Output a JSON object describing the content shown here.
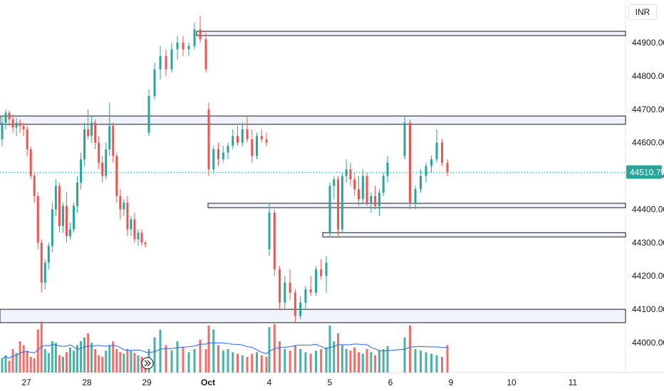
{
  "currency": "INR",
  "colors": {
    "up": "#26a69a",
    "down": "#ef5350",
    "volume_ma": "#2962ff",
    "zone_fill": "#f0f3fa",
    "zone_border": "#131722",
    "last_price_tag": "#26a69a"
  },
  "chart_data": {
    "type": "candlestick",
    "price_ylim": [
      43950,
      45000
    ],
    "price_ticks": [
      "44900.00",
      "44800.00",
      "44700.00",
      "44600.00",
      "44500.00",
      "44400.00",
      "44300.00",
      "44200.00",
      "44100.00",
      "44000.00"
    ],
    "last_price": "44510.75",
    "date_ticks": [
      "27",
      "28",
      "29",
      "Oct",
      "4",
      "5",
      "6",
      "9",
      "10",
      "11"
    ],
    "zones": [
      {
        "low": 44924,
        "high": 44934
      },
      {
        "low": 44655,
        "high": 44680
      },
      {
        "low": 44405,
        "high": 44418
      },
      {
        "low": 44320,
        "high": 44330
      },
      {
        "low": 44060,
        "high": 44100
      }
    ],
    "candles": [
      [
        44610,
        44680,
        44590,
        44660
      ],
      [
        44660,
        44700,
        44640,
        44690
      ],
      [
        44690,
        44695,
        44650,
        44670
      ],
      [
        44670,
        44685,
        44630,
        44645
      ],
      [
        44645,
        44675,
        44620,
        44660
      ],
      [
        44660,
        44670,
        44630,
        44650
      ],
      [
        44650,
        44660,
        44620,
        44640
      ],
      [
        44640,
        44650,
        44560,
        44580
      ],
      [
        44580,
        44590,
        44490,
        44500
      ],
      [
        44500,
        44510,
        44420,
        44440
      ],
      [
        44440,
        44450,
        44280,
        44300
      ],
      [
        44300,
        44310,
        44150,
        44180
      ],
      [
        44180,
        44250,
        44160,
        44240
      ],
      [
        44240,
        44300,
        44220,
        44290
      ],
      [
        44290,
        44420,
        44270,
        44400
      ],
      [
        44400,
        44490,
        44380,
        44470
      ],
      [
        44470,
        44480,
        44330,
        44350
      ],
      [
        44350,
        44420,
        44330,
        44410
      ],
      [
        44410,
        44450,
        44300,
        44320
      ],
      [
        44320,
        44360,
        44310,
        44340
      ],
      [
        44340,
        44420,
        44330,
        44410
      ],
      [
        44410,
        44500,
        44390,
        44480
      ],
      [
        44480,
        44570,
        44460,
        44550
      ],
      [
        44550,
        44660,
        44530,
        44640
      ],
      [
        44640,
        44700,
        44610,
        44620
      ],
      [
        44620,
        44680,
        44600,
        44660
      ],
      [
        44660,
        44670,
        44580,
        44600
      ],
      [
        44600,
        44620,
        44520,
        44540
      ],
      [
        44540,
        44560,
        44480,
        44500
      ],
      [
        44500,
        44600,
        44490,
        44580
      ],
      [
        44580,
        44720,
        44560,
        44650
      ],
      [
        44650,
        44660,
        44540,
        44560
      ],
      [
        44560,
        44570,
        44420,
        44440
      ],
      [
        44440,
        44460,
        44370,
        44400
      ],
      [
        44400,
        44430,
        44380,
        44420
      ],
      [
        44420,
        44440,
        44320,
        44340
      ],
      [
        44340,
        44380,
        44320,
        44370
      ],
      [
        44370,
        44390,
        44300,
        44310
      ],
      [
        44310,
        44340,
        44290,
        44330
      ],
      [
        44330,
        44340,
        44290,
        44300
      ],
      [
        44300,
        44305,
        44285,
        44295
      ],
      [
        44630,
        44760,
        44620,
        44740
      ],
      [
        44740,
        44840,
        44730,
        44820
      ],
      [
        44820,
        44890,
        44790,
        44860
      ],
      [
        44860,
        44880,
        44800,
        44820
      ],
      [
        44820,
        44900,
        44810,
        44880
      ],
      [
        44880,
        44920,
        44850,
        44900
      ],
      [
        44900,
        44920,
        44860,
        44880
      ],
      [
        44880,
        44900,
        44860,
        44890
      ],
      [
        44890,
        44960,
        44880,
        44940
      ],
      [
        44940,
        44980,
        44900,
        44910
      ],
      [
        44910,
        44930,
        44810,
        44820
      ],
      [
        44700,
        44720,
        44500,
        44520
      ],
      [
        44520,
        44590,
        44510,
        44580
      ],
      [
        44580,
        44600,
        44530,
        44550
      ],
      [
        44550,
        44590,
        44540,
        44570
      ],
      [
        44570,
        44600,
        44550,
        44590
      ],
      [
        44590,
        44640,
        44580,
        44620
      ],
      [
        44620,
        44650,
        44590,
        44600
      ],
      [
        44600,
        44660,
        44590,
        44640
      ],
      [
        44640,
        44680,
        44600,
        44610
      ],
      [
        44610,
        44640,
        44540,
        44560
      ],
      [
        44560,
        44630,
        44550,
        44620
      ],
      [
        44620,
        44640,
        44600,
        44610
      ],
      [
        44610,
        44630,
        44590,
        44600
      ],
      [
        44280,
        44420,
        44260,
        44390
      ],
      [
        44390,
        44400,
        44200,
        44220
      ],
      [
        44220,
        44230,
        44100,
        44120
      ],
      [
        44120,
        44200,
        44100,
        44180
      ],
      [
        44180,
        44220,
        44130,
        44150
      ],
      [
        44150,
        44160,
        44060,
        44080
      ],
      [
        44080,
        44140,
        44070,
        44120
      ],
      [
        44120,
        44170,
        44100,
        44160
      ],
      [
        44160,
        44200,
        44140,
        44150
      ],
      [
        44150,
        44230,
        44140,
        44220
      ],
      [
        44220,
        44250,
        44190,
        44200
      ],
      [
        44200,
        44260,
        44150,
        44240
      ],
      [
        44330,
        44480,
        44320,
        44470
      ],
      [
        44470,
        44500,
        44430,
        44490
      ],
      [
        44490,
        44500,
        44320,
        44340
      ],
      [
        44340,
        44510,
        44330,
        44500
      ],
      [
        44500,
        44550,
        44480,
        44520
      ],
      [
        44520,
        44540,
        44470,
        44490
      ],
      [
        44490,
        44510,
        44440,
        44460
      ],
      [
        44460,
        44500,
        44410,
        44430
      ],
      [
        44430,
        44520,
        44420,
        44500
      ],
      [
        44500,
        44510,
        44410,
        44420
      ],
      [
        44420,
        44450,
        44390,
        44440
      ],
      [
        44440,
        44470,
        44400,
        44410
      ],
      [
        44410,
        44460,
        44380,
        44450
      ],
      [
        44450,
        44510,
        44440,
        44500
      ],
      [
        44500,
        44560,
        44480,
        44540
      ],
      [
        44560,
        44680,
        44550,
        44660
      ],
      [
        44660,
        44670,
        44400,
        44420
      ],
      [
        44420,
        44470,
        44400,
        44460
      ],
      [
        44460,
        44520,
        44450,
        44500
      ],
      [
        44500,
        44540,
        44480,
        44530
      ],
      [
        44530,
        44560,
        44510,
        44550
      ],
      [
        44550,
        44640,
        44540,
        44600
      ],
      [
        44600,
        44610,
        44530,
        44540
      ],
      [
        44540,
        44550,
        44500,
        44510
      ]
    ],
    "volumes": [
      18,
      22,
      15,
      30,
      25,
      40,
      35,
      28,
      20,
      18,
      55,
      65,
      30,
      25,
      40,
      38,
      22,
      20,
      26,
      32,
      28,
      35,
      40,
      45,
      50,
      38,
      30,
      22,
      20,
      28,
      35,
      40,
      30,
      26,
      24,
      30,
      28,
      25,
      22,
      20,
      18,
      30,
      45,
      55,
      35,
      28,
      40,
      32,
      26,
      30,
      42,
      30,
      60,
      55,
      35,
      28,
      30,
      26,
      24,
      22,
      20,
      24,
      26,
      22,
      20,
      58,
      62,
      40,
      30,
      28,
      35,
      30,
      26,
      24,
      28,
      30,
      32,
      60,
      40,
      50,
      35,
      30,
      28,
      32,
      26,
      24,
      30,
      26,
      22,
      28,
      30,
      34,
      45,
      60,
      30,
      28,
      26,
      24,
      22,
      20,
      35
    ]
  }
}
